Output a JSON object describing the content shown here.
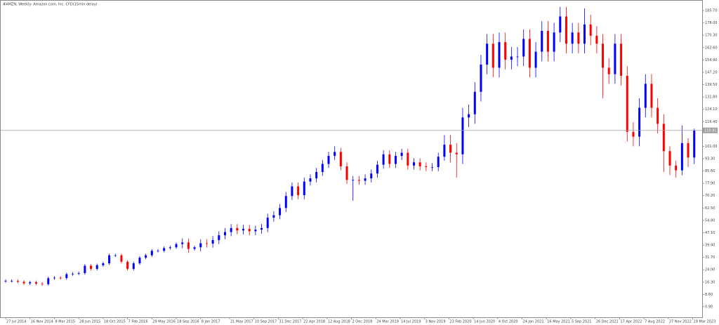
{
  "chart_data": {
    "type": "candlestick",
    "title": "#AMZN, Weekly: Amazon.com, Inc. CFD(15min delay)",
    "up_color": "#0000ff",
    "down_color": "#ff0000",
    "current_price": 110.91,
    "current_price_color": "#a0a0a0",
    "xlim": [
      -3.7,
      457.2
    ],
    "ylim": [
      -5.67,
      192.27
    ],
    "xticks": [
      {
        "value": 0,
        "label": "27 Jul 2014"
      },
      {
        "value": 16,
        "label": "16 Nov 2014"
      },
      {
        "value": 32,
        "label": "8 Mar 2015"
      },
      {
        "value": 48,
        "label": "28 Jun 2015"
      },
      {
        "value": 64,
        "label": "18 Oct 2015"
      },
      {
        "value": 80,
        "label": "7 Feb 2016"
      },
      {
        "value": 96,
        "label": "29 May 2016"
      },
      {
        "value": 112,
        "label": "18 Sep 2016"
      },
      {
        "value": 128,
        "label": "8 Jan 2017"
      },
      {
        "value": 147,
        "label": "21 May 2017"
      },
      {
        "value": 163,
        "label": "10 Sep 2017"
      },
      {
        "value": 179,
        "label": "31 Dec 2017"
      },
      {
        "value": 195,
        "label": "22 Apr 2018"
      },
      {
        "value": 211,
        "label": "12 Aug 2018"
      },
      {
        "value": 227,
        "label": "2 Dec 2018"
      },
      {
        "value": 243,
        "label": "24 Mar 2019"
      },
      {
        "value": 259,
        "label": "14 Jul 2019"
      },
      {
        "value": 275,
        "label": "3 Nov 2019"
      },
      {
        "value": 291,
        "label": "23 Feb 2020"
      },
      {
        "value": 307,
        "label": "14 Jun 2020"
      },
      {
        "value": 323,
        "label": "4 Oct 2020"
      },
      {
        "value": 339,
        "label": "24 Jan 2021"
      },
      {
        "value": 355,
        "label": "16 May 2021"
      },
      {
        "value": 371,
        "label": "5 Sep 2021"
      },
      {
        "value": 387,
        "label": "26 Dec 2021"
      },
      {
        "value": 403,
        "label": "17 Apr 2022"
      },
      {
        "value": 419,
        "label": "7 Aug 2022"
      },
      {
        "value": 435,
        "label": "27 Nov 2022"
      },
      {
        "value": 451,
        "label": "19 Mar 2023"
      }
    ],
    "yticks": [
      {
        "value": 185.7,
        "label": "185.70"
      },
      {
        "value": 178,
        "label": "178.00"
      },
      {
        "value": 170.3,
        "label": "170.30"
      },
      {
        "value": 162.6,
        "label": "162.60"
      },
      {
        "value": 154.9,
        "label": "154.90"
      },
      {
        "value": 147.2,
        "label": "147.20"
      },
      {
        "value": 139.5,
        "label": "139.50"
      },
      {
        "value": 131.8,
        "label": "131.80"
      },
      {
        "value": 124.1,
        "label": "124.10"
      },
      {
        "value": 116.4,
        "label": "116.40"
      },
      {
        "value": 101,
        "label": "101.00"
      },
      {
        "value": 93.3,
        "label": "93.30"
      },
      {
        "value": 85.6,
        "label": "85.60"
      },
      {
        "value": 77.9,
        "label": "77.90"
      },
      {
        "value": 70.2,
        "label": "70.20"
      },
      {
        "value": 62.5,
        "label": "62.50"
      },
      {
        "value": 54.8,
        "label": "54.80"
      },
      {
        "value": 47.1,
        "label": "47.10"
      },
      {
        "value": 39.4,
        "label": "39.40"
      },
      {
        "value": 31.7,
        "label": "31.70"
      },
      {
        "value": 24,
        "label": "24.00"
      },
      {
        "value": 16.3,
        "label": "16.30"
      },
      {
        "value": 8.6,
        "label": "8.60"
      },
      {
        "value": 0.9,
        "label": "0.90"
      }
    ],
    "x": [
      0,
      4,
      8,
      12,
      16,
      20,
      24,
      28,
      32,
      36,
      40,
      44,
      48,
      52,
      56,
      60,
      64,
      68,
      72,
      76,
      80,
      84,
      88,
      92,
      96,
      100,
      104,
      108,
      112,
      116,
      120,
      124,
      128,
      132,
      136,
      140,
      144,
      148,
      152,
      156,
      160,
      164,
      168,
      172,
      176,
      180,
      184,
      188,
      192,
      196,
      200,
      204,
      208,
      212,
      216,
      220,
      224,
      228,
      232,
      236,
      240,
      244,
      248,
      252,
      256,
      260,
      264,
      268,
      272,
      276,
      280,
      284,
      288,
      292,
      296,
      300,
      304,
      308,
      312,
      316,
      320,
      324,
      328,
      332,
      336,
      340,
      344,
      348,
      352,
      356,
      360,
      364,
      368,
      372,
      376,
      380,
      384,
      388,
      392,
      396,
      400,
      404,
      408,
      412,
      416,
      420,
      424,
      428,
      432,
      436,
      440,
      444,
      448,
      452
    ],
    "open": [
      16.8,
      17.0,
      17.0,
      16.5,
      15.5,
      16.2,
      15.3,
      15.0,
      18.7,
      19.0,
      18.8,
      21.2,
      21.5,
      21.9,
      26.5,
      24.5,
      26.8,
      28.0,
      33.0,
      33.0,
      29.0,
      24.5,
      28.0,
      31.5,
      33.0,
      35.8,
      35.8,
      37.5,
      38.0,
      40.0,
      41.0,
      37.0,
      38.0,
      40.5,
      40.3,
      42.5,
      45.5,
      47.5,
      50.0,
      48.5,
      49.5,
      48.0,
      49.0,
      50.0,
      56.5,
      58.0,
      62.5,
      70.0,
      76.0,
      70.5,
      79.0,
      81.0,
      85.0,
      90.0,
      95.0,
      97.5,
      88.5,
      80.0,
      80.0,
      79.5,
      81.0,
      84.0,
      89.5,
      96.0,
      90.0,
      95.0,
      97.0,
      89.0,
      91.0,
      88.5,
      88.0,
      88.0,
      94.5,
      102.0,
      97.0,
      96.0,
      119.0,
      121.0,
      135.0,
      152.0,
      165.0,
      150.0,
      166.0,
      155.0,
      157.0,
      157.0,
      168.0,
      150.0,
      160.0,
      173.0,
      160.0,
      172.0,
      182.0,
      165.0,
      172.0,
      165.0,
      177.0,
      170.0,
      165.0,
      150.0,
      146.0,
      165.0,
      145.0,
      110.0,
      107.0,
      125.0,
      140.0,
      125.0,
      115.0,
      98.0,
      89.0,
      86.0,
      103.0,
      94.0
    ],
    "high": [
      18.0,
      18.0,
      18.0,
      17.5,
      17.2,
      17.2,
      16.3,
      19.7,
      20.0,
      20.0,
      22.2,
      22.5,
      22.9,
      27.5,
      27.5,
      27.8,
      29.0,
      34.0,
      34.0,
      34.0,
      30.0,
      29.0,
      32.5,
      34.0,
      36.8,
      36.8,
      38.5,
      39.0,
      41.0,
      43.5,
      43.5,
      39.0,
      43.0,
      43.0,
      45.0,
      48.0,
      50.0,
      52.5,
      52.5,
      52.0,
      52.0,
      51.5,
      52.5,
      59.0,
      60.5,
      65.0,
      72.5,
      78.5,
      78.5,
      81.5,
      83.5,
      87.5,
      92.5,
      97.5,
      101.0,
      100.0,
      91.0,
      82.5,
      82.5,
      83.5,
      86.5,
      92.0,
      98.5,
      98.5,
      97.5,
      99.5,
      99.5,
      93.5,
      93.5,
      91.0,
      90.5,
      97.0,
      108.0,
      108.0,
      103.0,
      125.0,
      127.0,
      141.0,
      158.0,
      171.0,
      171.0,
      172.0,
      172.0,
      163.0,
      163.0,
      174.0,
      174.0,
      166.0,
      179.0,
      179.0,
      178.0,
      188.0,
      188.0,
      178.0,
      178.0,
      187.0,
      183.0,
      176.0,
      171.0,
      156.0,
      171.0,
      171.0,
      151.0,
      116.0,
      131.0,
      146.0,
      146.0,
      131.0,
      121.0,
      101.0,
      92.0,
      114.0,
      106.0,
      112.0
    ],
    "low": [
      15.8,
      16.0,
      15.5,
      14.5,
      14.5,
      14.3,
      14.0,
      14.0,
      17.7,
      17.8,
      17.8,
      20.2,
      20.5,
      20.9,
      23.5,
      23.5,
      25.8,
      27.0,
      32.0,
      28.0,
      23.5,
      23.5,
      27.0,
      30.5,
      32.0,
      34.8,
      34.8,
      36.5,
      37.0,
      37.5,
      34.5,
      36.0,
      35.5,
      37.8,
      37.8,
      40.0,
      43.0,
      45.0,
      46.0,
      46.0,
      45.5,
      45.5,
      46.5,
      47.5,
      54.0,
      55.5,
      60.0,
      67.5,
      68.0,
      68.0,
      76.5,
      78.5,
      82.5,
      87.5,
      92.5,
      86.0,
      77.5,
      67.0,
      77.0,
      77.0,
      78.5,
      81.5,
      87.0,
      87.5,
      87.5,
      92.5,
      86.5,
      86.5,
      86.0,
      85.5,
      85.5,
      85.5,
      92.0,
      91.0,
      81.5,
      90.0,
      113.0,
      115.0,
      129.0,
      146.0,
      144.0,
      144.0,
      149.0,
      149.0,
      151.0,
      151.0,
      144.0,
      144.0,
      154.0,
      154.0,
      154.0,
      166.0,
      159.0,
      159.0,
      159.0,
      159.0,
      164.0,
      159.0,
      131.0,
      140.0,
      140.0,
      139.0,
      104.0,
      101.0,
      101.0,
      119.0,
      119.0,
      109.0,
      85.0,
      83.0,
      81.5,
      83.0,
      88.0,
      90.0
    ],
    "close": [
      17.0,
      17.0,
      16.5,
      15.5,
      16.2,
      15.3,
      15.0,
      18.7,
      19.0,
      18.8,
      21.2,
      21.5,
      21.9,
      26.5,
      24.5,
      26.8,
      28.0,
      33.0,
      33.0,
      29.0,
      24.5,
      28.0,
      31.5,
      33.0,
      35.8,
      35.8,
      37.5,
      38.0,
      40.0,
      41.0,
      37.0,
      38.0,
      40.5,
      40.3,
      42.5,
      45.5,
      47.5,
      50.0,
      48.5,
      49.5,
      48.0,
      49.0,
      50.0,
      56.5,
      58.0,
      62.5,
      70.0,
      76.0,
      70.5,
      79.0,
      81.0,
      85.0,
      90.0,
      95.0,
      97.5,
      88.5,
      80.0,
      80.0,
      79.5,
      81.0,
      84.0,
      89.5,
      96.0,
      90.0,
      95.0,
      97.0,
      89.0,
      91.0,
      88.5,
      88.0,
      88.0,
      94.5,
      102.0,
      97.0,
      96.0,
      119.0,
      121.0,
      135.0,
      152.0,
      165.0,
      150.0,
      166.0,
      155.0,
      157.0,
      157.0,
      168.0,
      150.0,
      160.0,
      173.0,
      160.0,
      172.0,
      182.0,
      165.0,
      172.0,
      165.0,
      177.0,
      170.0,
      165.0,
      150.0,
      146.0,
      165.0,
      145.0,
      110.0,
      107.0,
      125.0,
      140.0,
      125.0,
      115.0,
      98.0,
      89.0,
      86.0,
      103.0,
      94.0,
      110.91
    ]
  }
}
